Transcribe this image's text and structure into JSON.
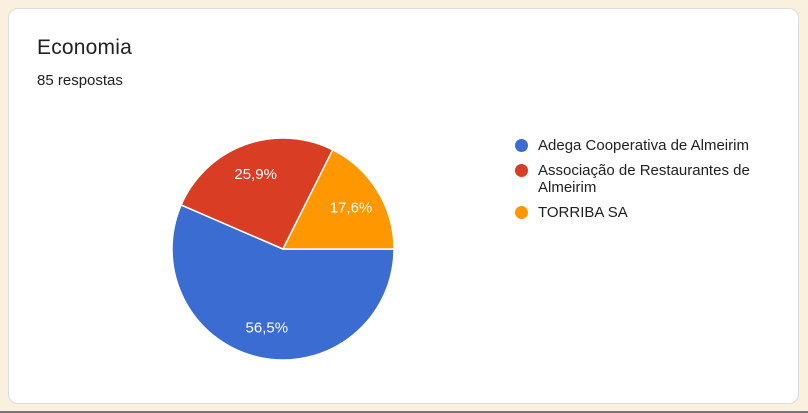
{
  "page": {
    "background": "#FAF0DE",
    "bottom_edge_color": "#76767B"
  },
  "card": {
    "background": "#FFFFFF",
    "border_color": "#DADCE0",
    "title": "Economia",
    "subtitle": "85 respostas",
    "title_color": "#202124",
    "subtitle_color": "#202124"
  },
  "chart_data": {
    "type": "pie",
    "title": "Economia",
    "responses_label": "85 respostas",
    "total_responses": 85,
    "start_angle_deg": 90,
    "direction": "clockwise",
    "legend_position": "right",
    "label_color": "#FFFFFF",
    "label_font_size": 15,
    "label_radius_ratio": 0.72,
    "slice_separator_color": "#FFFFFF",
    "slices": [
      {
        "label": "Adega Cooperativa de Almeirim",
        "pct": 56.5,
        "pct_display": "56,5%",
        "color": "#3B6CD2"
      },
      {
        "label": "Associação de Restaurantes de Almeirim",
        "pct": 25.9,
        "pct_display": "25,9%",
        "color": "#D93D23"
      },
      {
        "label": "TORRIBA SA",
        "pct": 17.6,
        "pct_display": "17,6%",
        "color": "#FF9800"
      }
    ]
  },
  "legend": {
    "text_color": "#202124"
  }
}
